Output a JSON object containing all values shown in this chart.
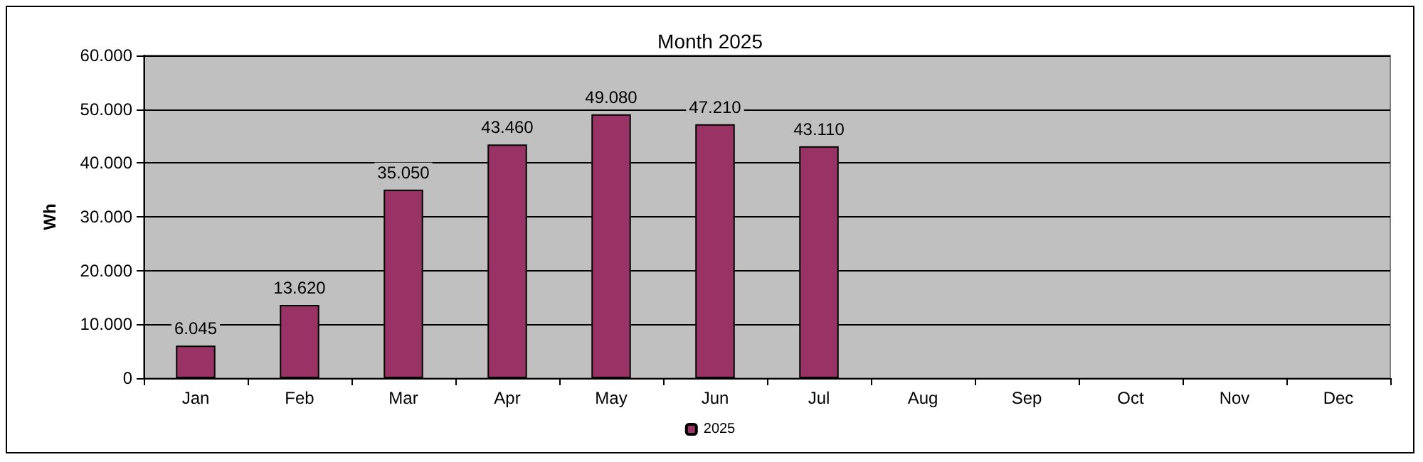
{
  "chart_data": {
    "type": "bar",
    "title": "Month 2025",
    "ylabel": "Wh",
    "categories": [
      "Jan",
      "Feb",
      "Mar",
      "Apr",
      "May",
      "Jun",
      "Jul",
      "Aug",
      "Sep",
      "Oct",
      "Nov",
      "Dec"
    ],
    "series": [
      {
        "name": "2025",
        "color": "#993366",
        "values": [
          6045,
          13620,
          35050,
          43460,
          49080,
          47210,
          43110,
          null,
          null,
          null,
          null,
          null
        ],
        "value_labels": [
          "6.045",
          "13.620",
          "35.050",
          "43.460",
          "49.080",
          "47.210",
          "43.110",
          null,
          null,
          null,
          null,
          null
        ]
      }
    ],
    "ylim": [
      0,
      60000
    ],
    "yticks": [
      0,
      {
        "value": 10000,
        "label": "10.000"
      },
      {
        "value": 20000,
        "label": "20.000"
      },
      {
        "value": 30000,
        "label": "30.000"
      },
      {
        "value": 40000,
        "label": "40.000"
      },
      {
        "value": 50000,
        "label": "50.000"
      },
      {
        "value": 60000,
        "label": "60.000"
      }
    ],
    "grid": "y",
    "legend": "bottom"
  }
}
